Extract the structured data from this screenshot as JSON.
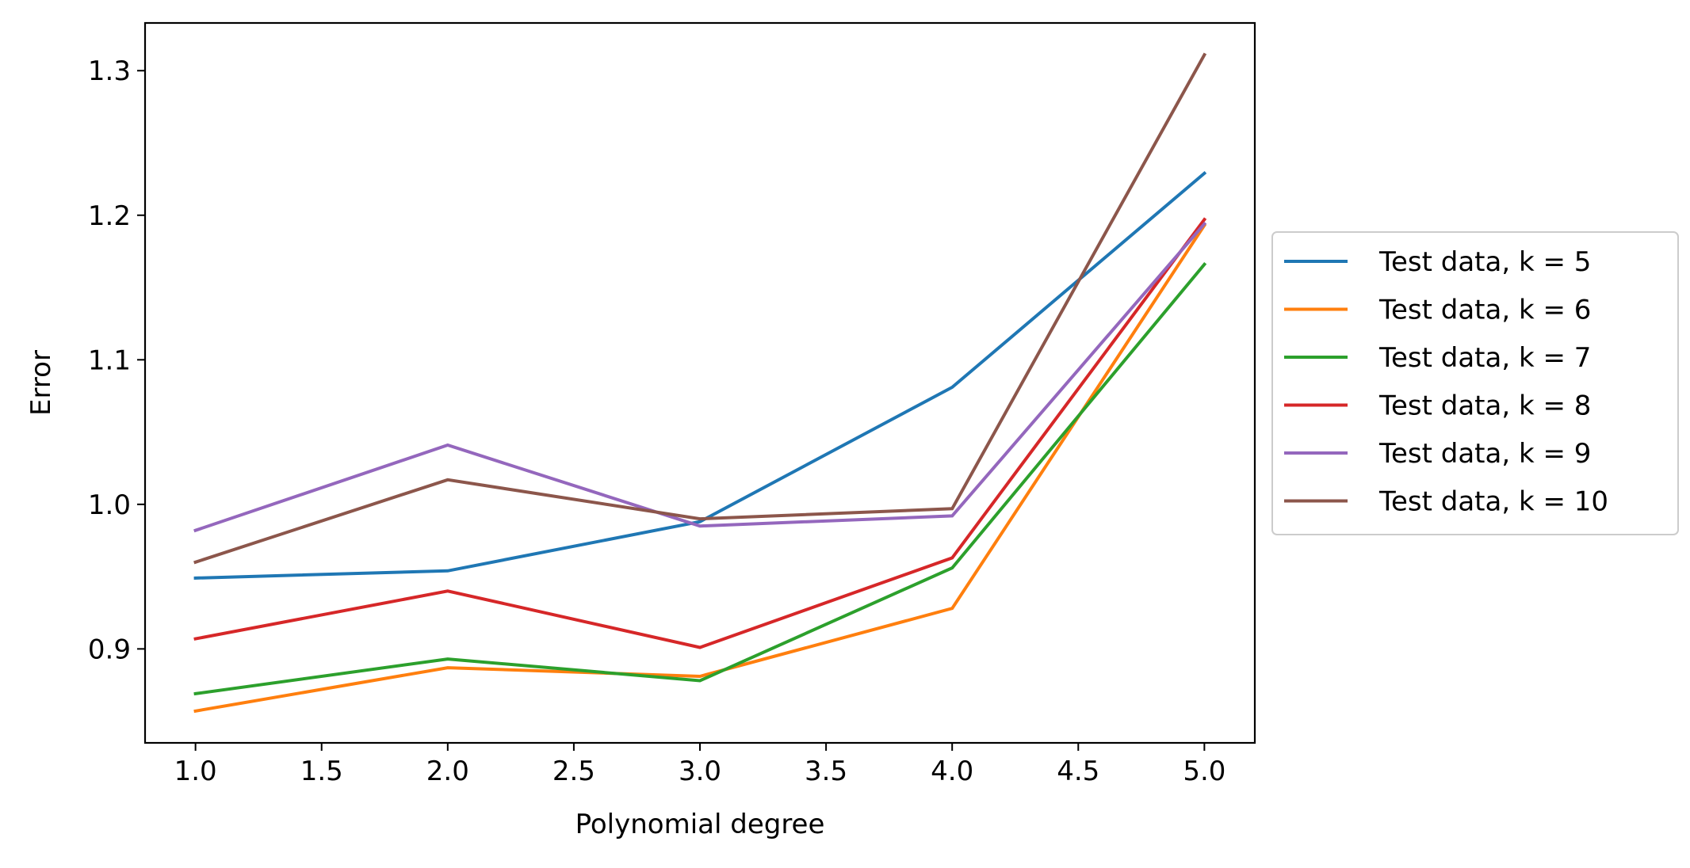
{
  "chart_data": {
    "type": "line",
    "xlabel": "Polynomial degree",
    "ylabel": "Error",
    "xlim": [
      0.8,
      5.2
    ],
    "ylim": [
      0.835,
      1.333
    ],
    "xticks": [
      1.0,
      1.5,
      2.0,
      2.5,
      3.0,
      3.5,
      4.0,
      4.5,
      5.0
    ],
    "xtick_labels": [
      "1.0",
      "1.5",
      "2.0",
      "2.5",
      "3.0",
      "3.5",
      "4.0",
      "4.5",
      "5.0"
    ],
    "yticks": [
      0.9,
      1.0,
      1.1,
      1.2,
      1.3
    ],
    "ytick_labels": [
      "0.9",
      "1.0",
      "1.1",
      "1.2",
      "1.3"
    ],
    "grid": false,
    "legend_placement": "outside-right",
    "x": [
      1,
      2,
      3,
      4,
      5
    ],
    "series": [
      {
        "name": "Test data, k = 5",
        "color": "#1f77b4",
        "values": [
          0.949,
          0.954,
          0.988,
          1.081,
          1.229
        ]
      },
      {
        "name": "Test data, k = 6",
        "color": "#ff7f0e",
        "values": [
          0.857,
          0.887,
          0.881,
          0.928,
          1.193
        ]
      },
      {
        "name": "Test data, k = 7",
        "color": "#2ca02c",
        "values": [
          0.869,
          0.893,
          0.878,
          0.956,
          1.166
        ]
      },
      {
        "name": "Test data, k = 8",
        "color": "#d62728",
        "values": [
          0.907,
          0.94,
          0.901,
          0.963,
          1.197
        ]
      },
      {
        "name": "Test data, k = 9",
        "color": "#9467bd",
        "values": [
          0.982,
          1.041,
          0.985,
          0.992,
          1.194
        ]
      },
      {
        "name": "Test data, k = 10",
        "color": "#8c564b",
        "values": [
          0.96,
          1.017,
          0.99,
          0.997,
          1.311
        ]
      }
    ]
  }
}
